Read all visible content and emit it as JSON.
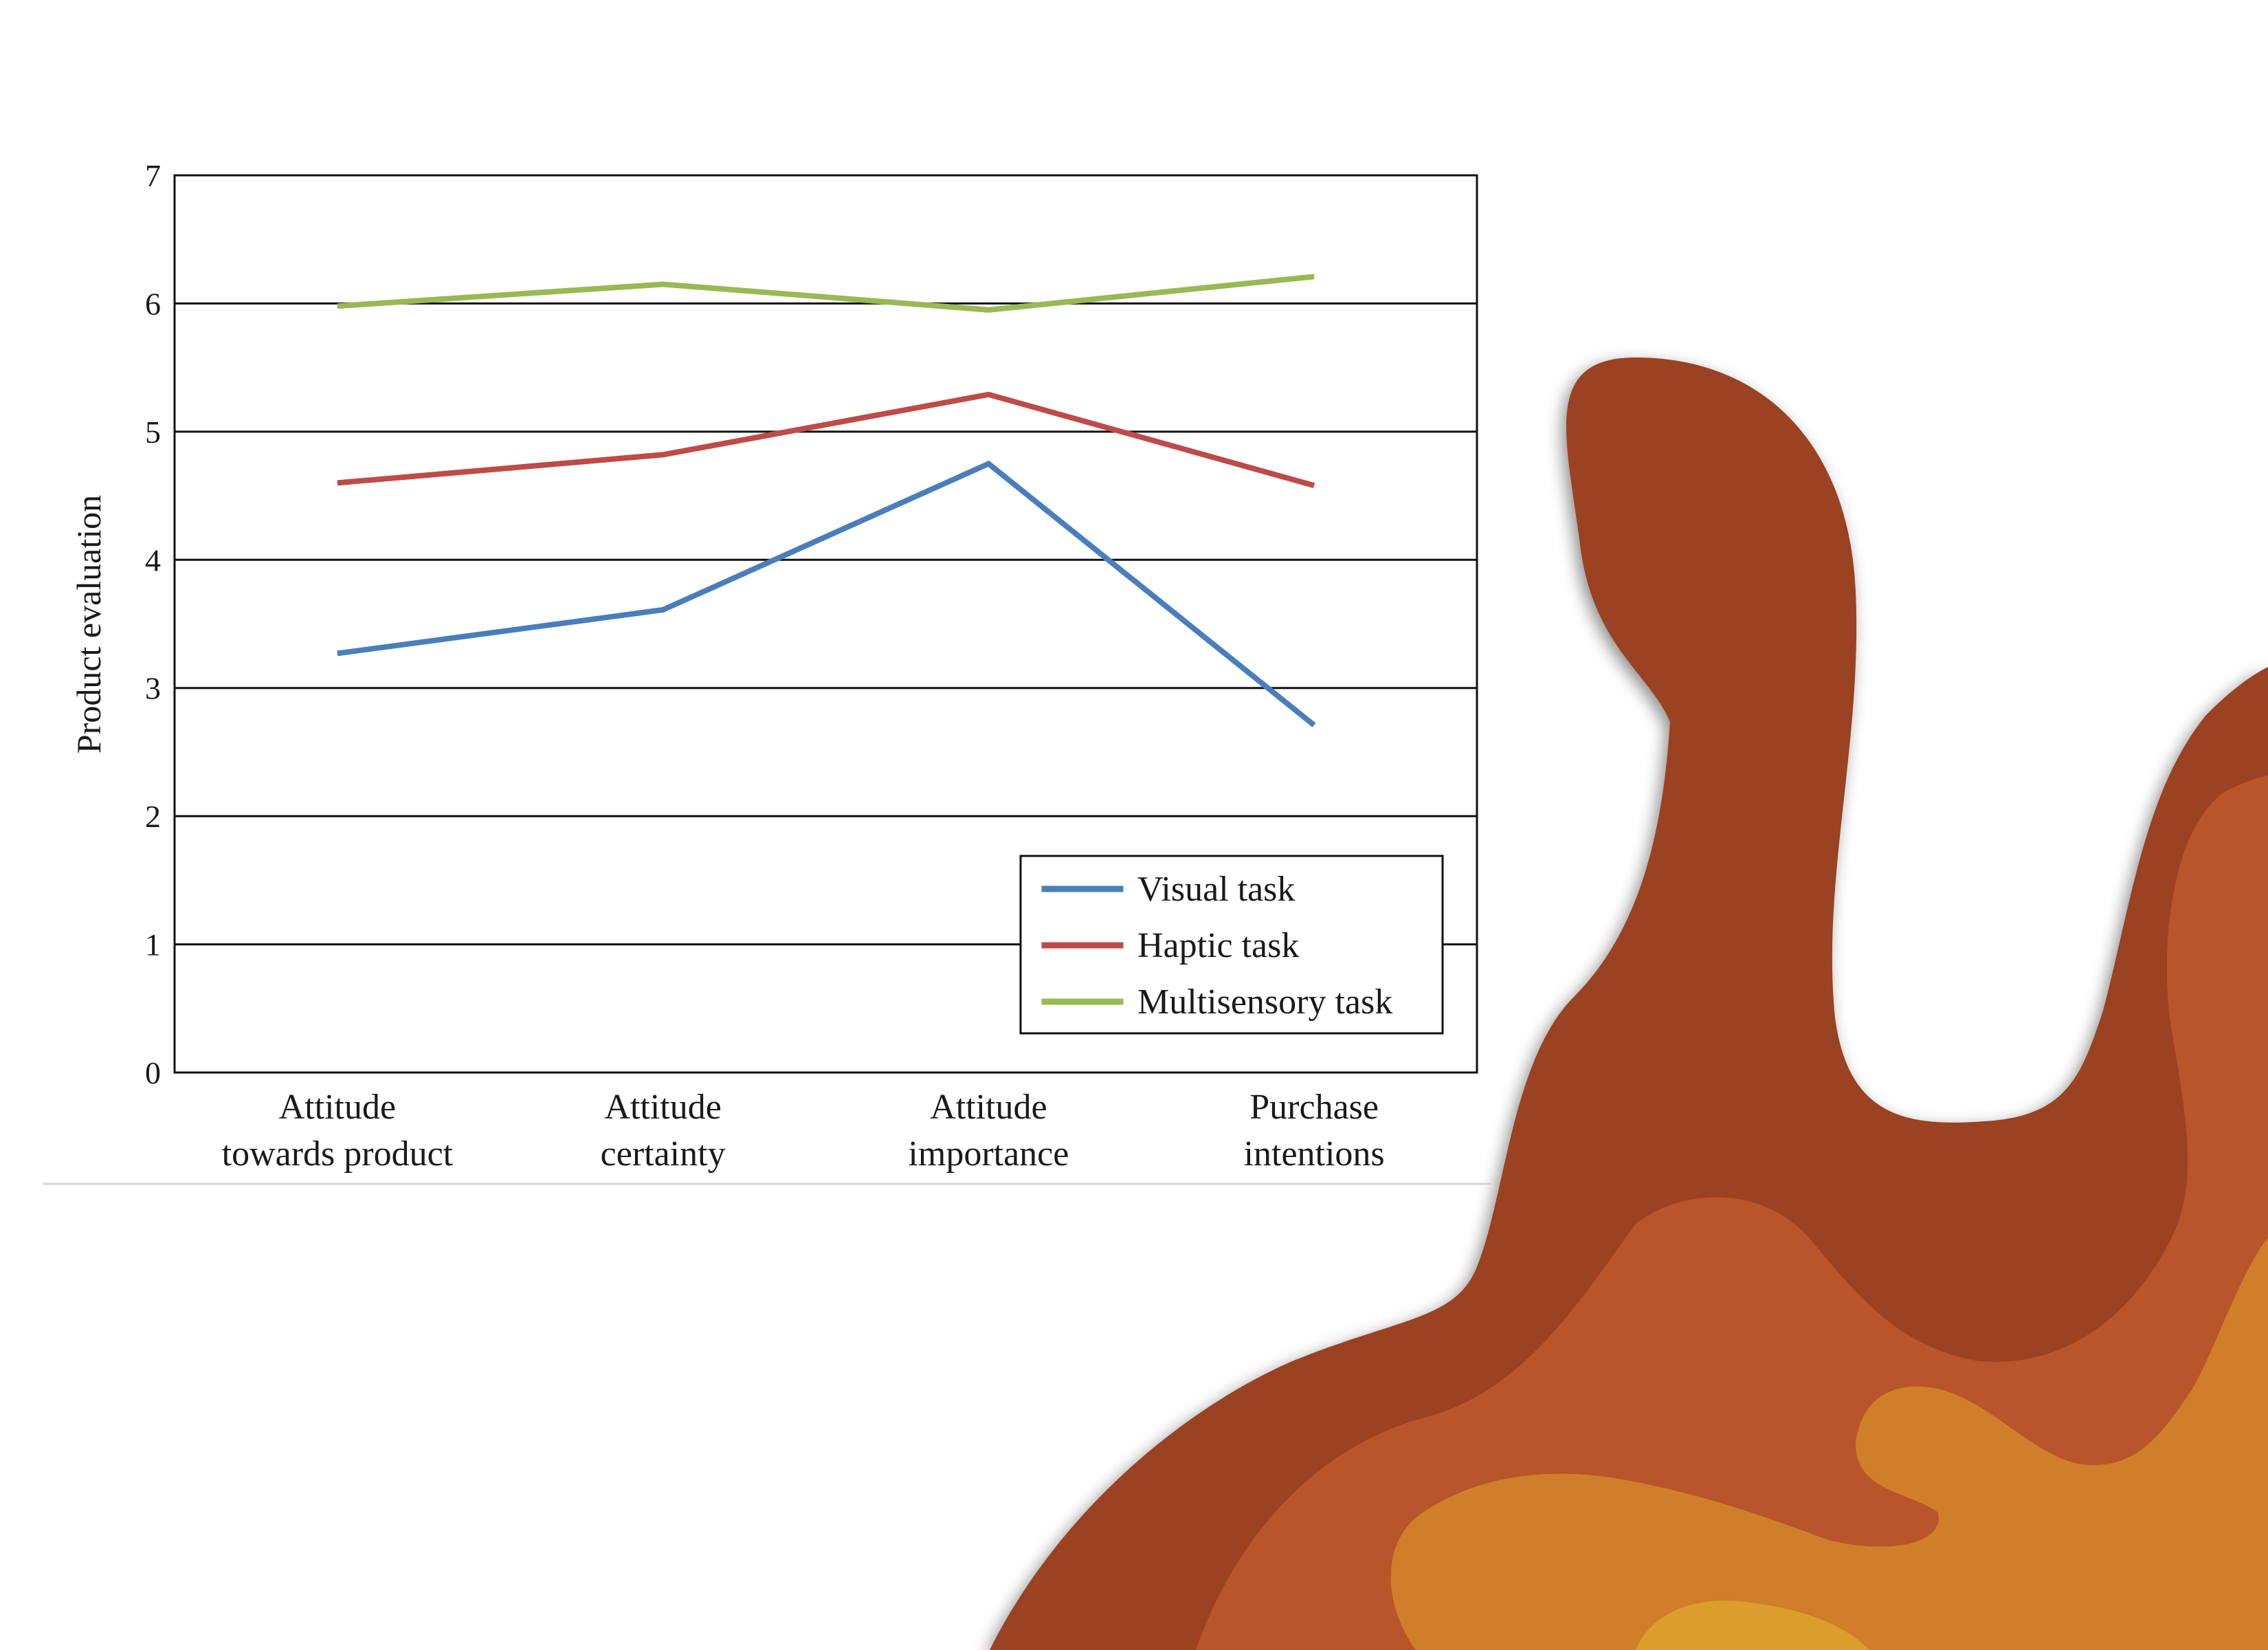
{
  "chart_data": {
    "type": "line",
    "title": "",
    "ylabel": "Product evaluation",
    "xlabel": "",
    "ylim": [
      0,
      7
    ],
    "yticks": [
      "0",
      "1",
      "2",
      "3",
      "4",
      "5",
      "6",
      "7"
    ],
    "grid": true,
    "legend_position": "bottom-right",
    "categories": [
      [
        "Attitude",
        "towards product"
      ],
      [
        "Attitude",
        "certainty"
      ],
      [
        "Attitude",
        "importance"
      ],
      [
        "Purchase",
        "intentions"
      ]
    ],
    "series": [
      {
        "name": "Visual task",
        "color": "#4a7ebb",
        "values": [
          3.27,
          3.61,
          4.75,
          2.71
        ]
      },
      {
        "name": "Haptic task",
        "color": "#be4b48",
        "values": [
          4.6,
          4.82,
          5.29,
          4.58
        ]
      },
      {
        "name": "Multisensory task",
        "color": "#98b954",
        "values": [
          5.98,
          6.15,
          5.95,
          6.21
        ]
      }
    ]
  },
  "decoration": {
    "colors": [
      "#9a4323",
      "#b9542a",
      "#d07e2c",
      "#dd9d29"
    ]
  }
}
